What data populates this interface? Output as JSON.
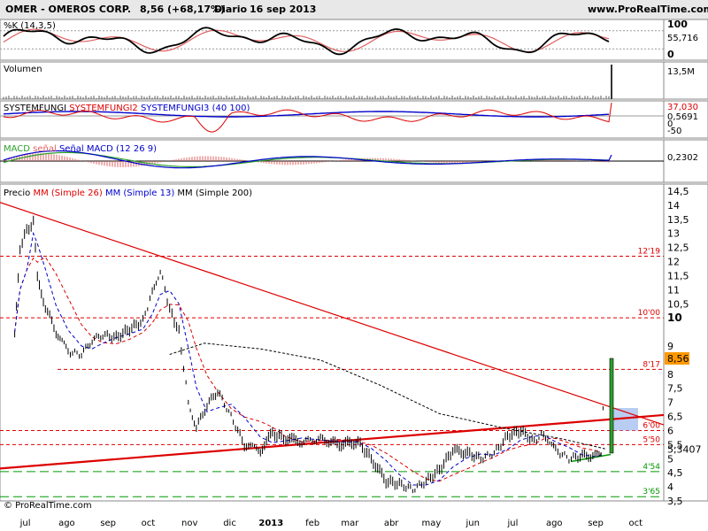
{
  "header": {
    "ticker": "OMER - OMEROS CORP.",
    "quote": "8,56 (+68,17%)",
    "interval": "Diario",
    "date": "16 sep 2013",
    "site": "www.ProRealTime.com"
  },
  "footer": {
    "copyright": "© ProRealTime.com"
  },
  "chart_data": [
    {
      "type": "line",
      "title": "%K (14,3,5)",
      "y_ticks": [
        "100",
        "0"
      ],
      "last_value_label": "55,716",
      "ylim": [
        0,
        100
      ],
      "series": [
        {
          "name": "%K",
          "color": "#000000"
        },
        {
          "name": "%D",
          "color": "#e06060"
        }
      ]
    },
    {
      "type": "bar",
      "title": "Volumen",
      "last_value_label": "13,5M",
      "description_values": {
        "last_volume": "13,5M"
      }
    },
    {
      "type": "line",
      "title_parts": [
        "SYSTEMFUNGI",
        "SYSTEMFUNGI2",
        "SYSTEMFUNGI3 (40 100)"
      ],
      "title_colors": [
        "#000000",
        "#dd0000",
        "#0000cc"
      ],
      "last_value_labels": [
        "37,030",
        "0,5691"
      ],
      "y_ticks": [
        "0"
      ]
    },
    {
      "type": "line",
      "title_parts": [
        "MACD",
        "señal",
        "Señal MACD (12 26 9)"
      ],
      "title_colors": [
        "#2ca02c",
        "#e06060",
        "#0000cc"
      ],
      "last_value_label": "0,2302",
      "y_ticks": [
        "-50"
      ]
    },
    {
      "type": "line",
      "title_parts": [
        "Precio",
        "MM (Simple 26)",
        "MM (Simple 13)",
        "MM (Simple 200)"
      ],
      "title_colors": [
        "#000000",
        "#dd0000",
        "#0000cc",
        "#000000"
      ],
      "x_ticks": [
        "jul",
        "ago",
        "sep",
        "oct",
        "nov",
        "dic",
        "2013",
        "feb",
        "mar",
        "abr",
        "may",
        "jun",
        "jul",
        "ago",
        "sep",
        "oct"
      ],
      "y_ticks": [
        14.5,
        14,
        13.5,
        13,
        12.5,
        12,
        11.5,
        11,
        10.5,
        10,
        9,
        8.5,
        8,
        7.5,
        7,
        6.5,
        6,
        5.5,
        5,
        4.5,
        4,
        3.5
      ],
      "y_tick_labels": [
        "14,5",
        "14",
        "13,5",
        "13",
        "12,5",
        "12",
        "11,5",
        "11",
        "10,5",
        "10",
        "9",
        "8,5",
        "8",
        "7,5",
        "7",
        "6,5",
        "6",
        "5,5",
        "5",
        "4,5",
        "4",
        "3,5"
      ],
      "ylim": [
        3.5,
        14.5
      ],
      "last_price": 8.56,
      "last_price_label": "8,56",
      "secondary_label": "5,3407",
      "levels": [
        {
          "label": "12'19",
          "value": 12.19,
          "color": "#dd0000"
        },
        {
          "label": "10'00",
          "value": 10.0,
          "color": "#dd0000"
        },
        {
          "label": "8'17",
          "value": 8.17,
          "color": "#dd0000"
        },
        {
          "label": "6'00",
          "value": 6.0,
          "color": "#dd0000"
        },
        {
          "label": "5'50",
          "value": 5.5,
          "color": "#dd0000"
        },
        {
          "label": "4'54",
          "value": 4.54,
          "color": "#009900"
        },
        {
          "label": "3'65",
          "value": 3.65,
          "color": "#009900"
        }
      ],
      "price_path": [
        [
          "2012-07-01",
          9.5
        ],
        [
          "2012-07-05",
          12.5
        ],
        [
          "2012-07-10",
          13.1
        ],
        [
          "2012-07-15",
          13.4
        ],
        [
          "2012-07-18",
          11.4
        ],
        [
          "2012-07-24",
          10.4
        ],
        [
          "2012-08-01",
          9.5
        ],
        [
          "2012-08-10",
          8.8
        ],
        [
          "2012-08-20",
          8.7
        ],
        [
          "2012-08-28",
          9.2
        ],
        [
          "2012-09-05",
          9.4
        ],
        [
          "2012-09-15",
          9.3
        ],
        [
          "2012-09-25",
          9.6
        ],
        [
          "2012-10-05",
          9.9
        ],
        [
          "2012-10-12",
          10.9
        ],
        [
          "2012-10-18",
          11.7
        ],
        [
          "2012-10-25",
          10.3
        ],
        [
          "2012-11-01",
          9.5
        ],
        [
          "2012-11-08",
          7.0
        ],
        [
          "2012-11-14",
          6.1
        ],
        [
          "2012-11-22",
          6.9
        ],
        [
          "2012-11-30",
          7.4
        ],
        [
          "2012-12-10",
          6.5
        ],
        [
          "2012-12-20",
          5.5
        ],
        [
          "2013-01-01",
          5.3
        ],
        [
          "2013-01-10",
          5.9
        ],
        [
          "2013-01-20",
          5.7
        ],
        [
          "2013-02-01",
          5.6
        ],
        [
          "2013-02-15",
          5.7
        ],
        [
          "2013-03-01",
          5.5
        ],
        [
          "2013-03-15",
          5.6
        ],
        [
          "2013-03-25",
          5.0
        ],
        [
          "2013-04-05",
          4.2
        ],
        [
          "2013-04-15",
          4.1
        ],
        [
          "2013-04-25",
          3.9
        ],
        [
          "2013-05-05",
          4.2
        ],
        [
          "2013-05-15",
          4.6
        ],
        [
          "2013-05-25",
          5.3
        ],
        [
          "2013-06-05",
          5.2
        ],
        [
          "2013-06-15",
          5.0
        ],
        [
          "2013-06-25",
          5.2
        ],
        [
          "2013-07-05",
          5.8
        ],
        [
          "2013-07-15",
          6.0
        ],
        [
          "2013-07-25",
          5.6
        ],
        [
          "2013-08-01",
          5.9
        ],
        [
          "2013-08-10",
          5.3
        ],
        [
          "2013-08-20",
          5.0
        ],
        [
          "2013-08-30",
          5.1
        ],
        [
          "2013-09-10",
          5.1
        ],
        [
          "2013-09-13",
          5.2
        ],
        [
          "2013-09-16",
          8.56
        ]
      ]
    }
  ],
  "colors": {
    "header_bg": "#e8e8e8",
    "grid": "#cccccc",
    "resistance": "#dd0000",
    "support": "#009900",
    "ma26": "#dd0000",
    "ma13": "#0000cc",
    "ma200": "#000000",
    "highlight_box": "#a8c0f0"
  }
}
